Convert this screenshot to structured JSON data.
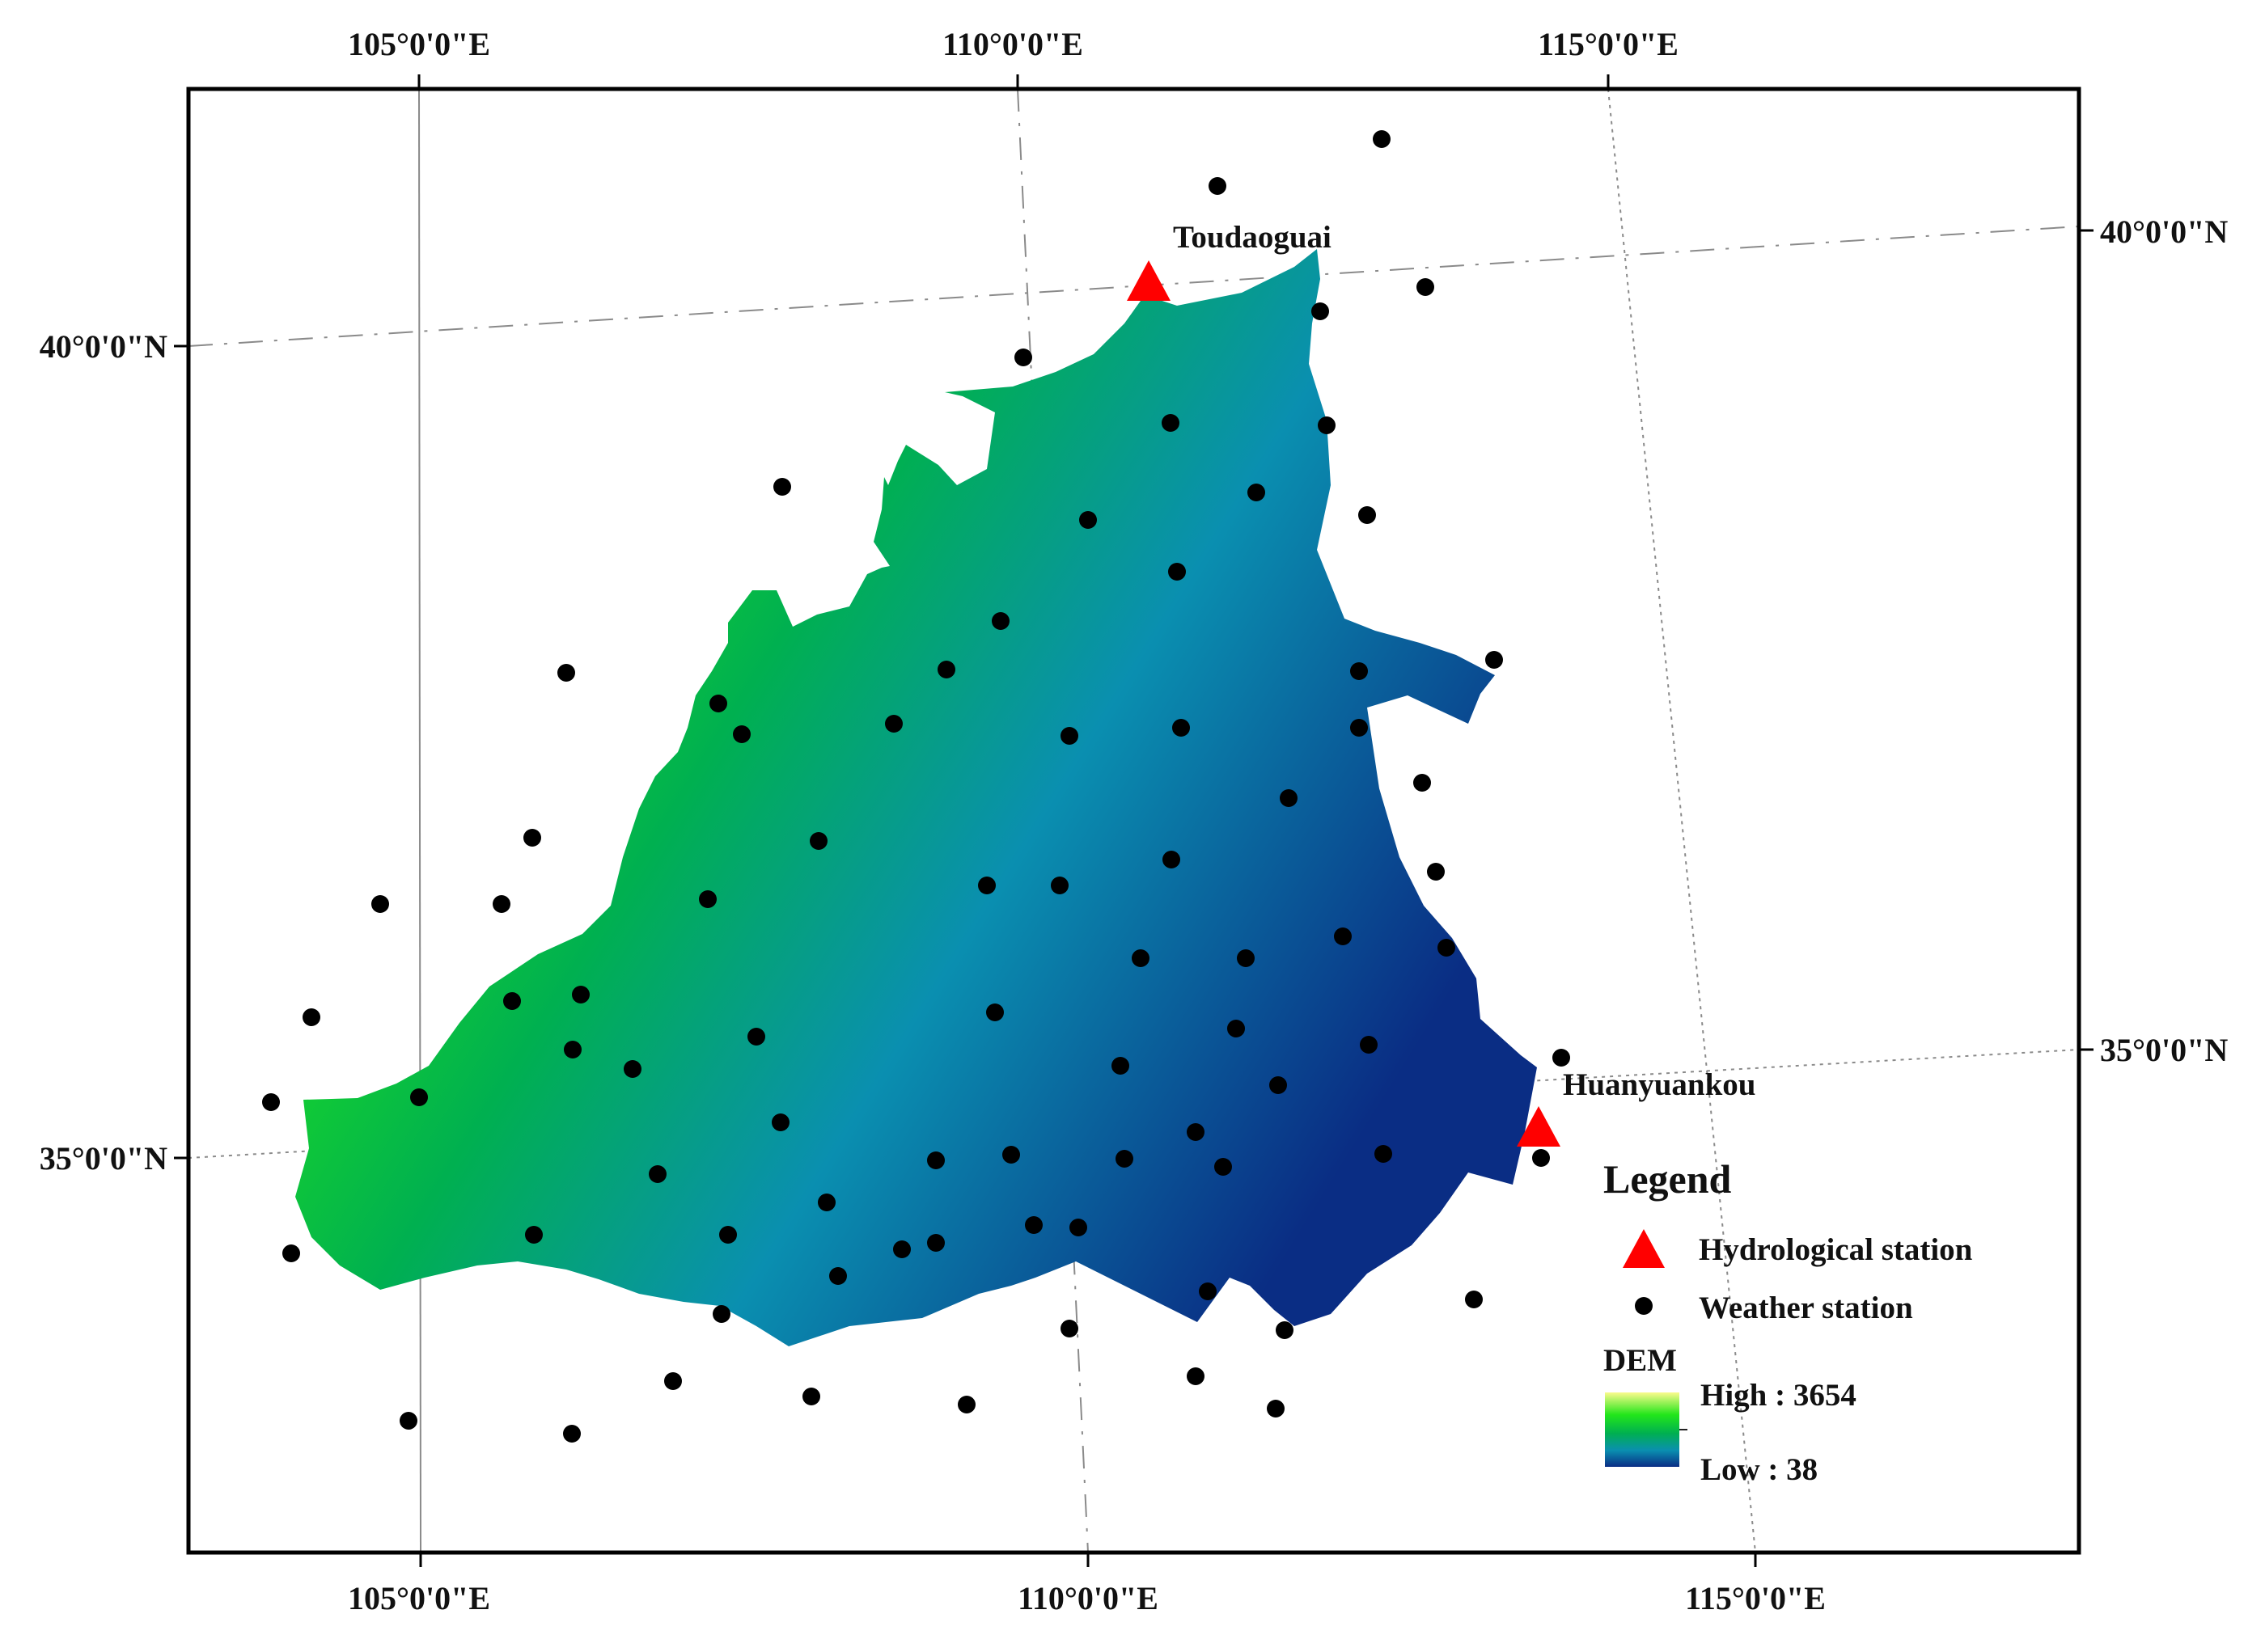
{
  "colors": {
    "frame": "#000000",
    "graticule": "#8a8a8a",
    "hydro_station": "#ff0000",
    "weather_station": "#000000",
    "dem_high": "#fbfb8c",
    "dem_mid_high": "#22e61a",
    "dem_mid": "#00b050",
    "dem_mid_low": "#0a8fb0",
    "dem_low": "#0a2d84"
  },
  "graticule": {
    "top_longitudes": [
      "105°0'0\"E",
      "110°0'0\"E",
      "115°0'0\"E"
    ],
    "bottom_longitudes": [
      "105°0'0\"E",
      "110°0'0\"E",
      "115°0'0\"E"
    ],
    "left_latitudes": [
      "40°0'0\"N",
      "35°0'0\"N"
    ],
    "right_latitudes": [
      "40°0'0\"N",
      "35°0'0\"N"
    ]
  },
  "stations": {
    "hydrological": [
      {
        "name": "Toudaoguai",
        "icon": "triangle"
      },
      {
        "name": "Huanyuankou",
        "icon": "triangle"
      }
    ],
    "weather_icon": "filled-circle"
  },
  "legend": {
    "title": "Legend",
    "hydro_label": "Hydrological station",
    "weather_label": "Weather station",
    "dem_title": "DEM",
    "dem_high_label": "High : 3654",
    "dem_low_label": "Low : 38",
    "dem_high_value": 3654,
    "dem_low_value": 38
  }
}
